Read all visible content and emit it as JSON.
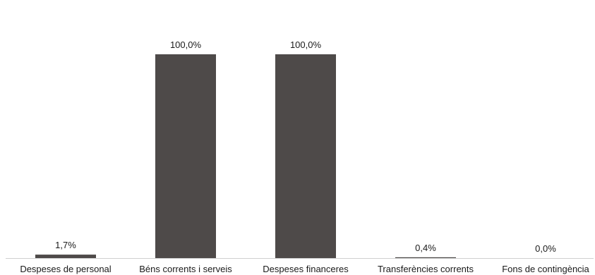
{
  "chart_data": {
    "type": "bar",
    "categories": [
      "Despeses de personal",
      "Béns corrents i serveis",
      "Despeses financeres",
      "Transferències corrents",
      "Fons de contingència"
    ],
    "values": [
      1.7,
      100.0,
      100.0,
      0.4,
      0.0
    ],
    "data_labels": [
      "1,7%",
      "100,0%",
      "100,0%",
      "0,4%",
      "0,0%"
    ],
    "ylim": [
      0,
      100
    ],
    "grid": false,
    "legend": "none",
    "colors": {
      "bar": "#4e4a49",
      "axis": "#d0d0d0",
      "text": "#1a1a1a"
    }
  }
}
